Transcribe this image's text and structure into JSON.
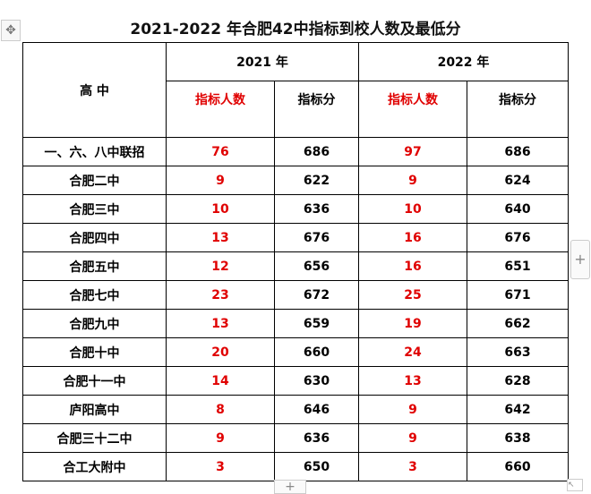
{
  "title": "2021-2022 年合肥42中指标到校人数及最低分",
  "header": {
    "school": "高 中",
    "year1": "2021 年",
    "year2": "2022 年",
    "quota_label": "指标人数",
    "score_label": "指标分"
  },
  "colors": {
    "quota": "#e00000",
    "text": "#000000"
  },
  "rows": [
    {
      "school": "一、六、八中联招",
      "q2021": "76",
      "s2021": "686",
      "q2022": "97",
      "s2022": "686"
    },
    {
      "school": "合肥二中",
      "q2021": "9",
      "s2021": "622",
      "q2022": "9",
      "s2022": "624"
    },
    {
      "school": "合肥三中",
      "q2021": "10",
      "s2021": "636",
      "q2022": "10",
      "s2022": "640"
    },
    {
      "school": "合肥四中",
      "q2021": "13",
      "s2021": "676",
      "q2022": "16",
      "s2022": "676"
    },
    {
      "school": "合肥五中",
      "q2021": "12",
      "s2021": "656",
      "q2022": "16",
      "s2022": "651"
    },
    {
      "school": "合肥七中",
      "q2021": "23",
      "s2021": "672",
      "q2022": "25",
      "s2022": "671"
    },
    {
      "school": "合肥九中",
      "q2021": "13",
      "s2021": "659",
      "q2022": "19",
      "s2022": "662"
    },
    {
      "school": "合肥十中",
      "q2021": "20",
      "s2021": "660",
      "q2022": "24",
      "s2022": "663"
    },
    {
      "school": "合肥十一中",
      "q2021": "14",
      "s2021": "630",
      "q2022": "13",
      "s2022": "628"
    },
    {
      "school": "庐阳高中",
      "q2021": "8",
      "s2021": "646",
      "q2022": "9",
      "s2022": "642"
    },
    {
      "school": "合肥三十二中",
      "q2021": "9",
      "s2021": "636",
      "q2022": "9",
      "s2022": "638"
    },
    {
      "school": "合工大附中",
      "q2021": "3",
      "s2021": "650",
      "q2022": "3",
      "s2022": "660"
    }
  ],
  "icons": {
    "move": "move-handle-icon",
    "add": "plus-icon",
    "resize": "resize-handle-icon"
  },
  "glyphs": {
    "move": "✥",
    "plus": "+",
    "resize": "↖"
  }
}
